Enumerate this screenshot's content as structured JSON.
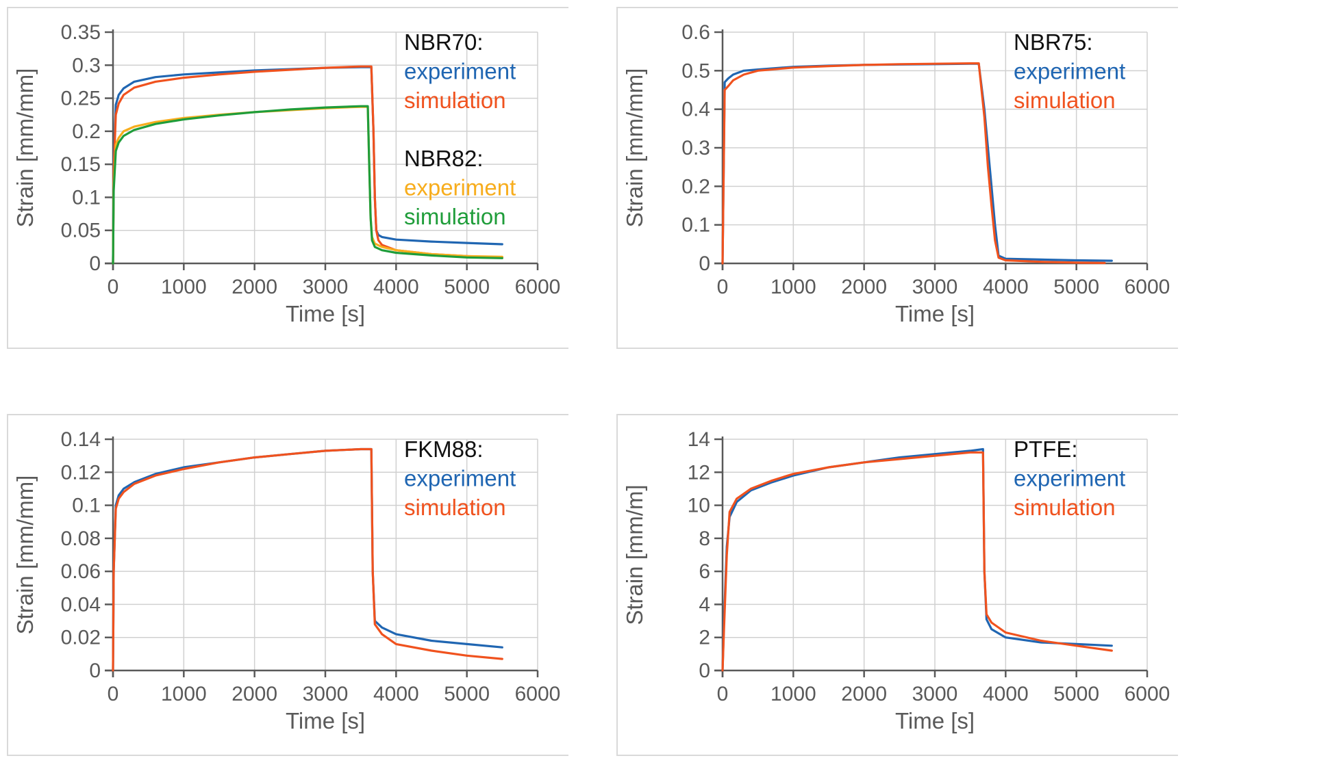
{
  "figure": {
    "colors": {
      "blue": "#2066b2",
      "orange": "#f0521e",
      "yellow": "#f7ad1d",
      "green": "#1f9d3a",
      "black": "#111111",
      "axis": "#595959",
      "frame": "#d9d9d9"
    }
  },
  "chart_data": [
    {
      "type": "line",
      "xlabel": "Time [s]",
      "ylabel": "Strain [mm/mm]",
      "xlim": [
        0,
        6000
      ],
      "ylim": [
        0,
        0.35
      ],
      "xticks": [
        0,
        1000,
        2000,
        3000,
        4000,
        5000,
        6000
      ],
      "yticks": [
        0,
        0.05,
        0.1,
        0.15,
        0.2,
        0.25,
        0.3,
        0.35
      ],
      "ytick_labels": [
        "0",
        "0.05",
        "0.1",
        "0.15",
        "0.2",
        "0.25",
        "0.3",
        "0.35"
      ],
      "legend": [
        {
          "text": "NBR70:",
          "color": "#111111"
        },
        {
          "text": "experiment",
          "color": "#2066b2"
        },
        {
          "text": "simulation",
          "color": "#f0521e"
        },
        {
          "text": "",
          "color": "#111111"
        },
        {
          "text": "NBR82:",
          "color": "#111111"
        },
        {
          "text": "experiment",
          "color": "#f7ad1d"
        },
        {
          "text": "simulation",
          "color": "#1f9d3a"
        }
      ],
      "legend_position": "top-right",
      "series": [
        {
          "name": "NBR70 experiment",
          "color": "#2066b2",
          "x": [
            0,
            10,
            40,
            80,
            150,
            300,
            600,
            1000,
            1500,
            2000,
            2500,
            3000,
            3500,
            3650,
            3680,
            3700,
            3720,
            3750,
            3800,
            4000,
            4500,
            5000,
            5500
          ],
          "y": [
            0,
            0.15,
            0.24,
            0.255,
            0.265,
            0.275,
            0.282,
            0.286,
            0.289,
            0.292,
            0.294,
            0.296,
            0.297,
            0.297,
            0.2,
            0.1,
            0.05,
            0.043,
            0.04,
            0.036,
            0.033,
            0.031,
            0.029
          ]
        },
        {
          "name": "NBR70 simulation",
          "color": "#f0521e",
          "x": [
            0,
            10,
            40,
            80,
            150,
            300,
            600,
            1000,
            1500,
            2000,
            2500,
            3000,
            3500,
            3650,
            3680,
            3700,
            3720,
            3750,
            3800,
            4000,
            4500,
            5000,
            5500
          ],
          "y": [
            0,
            0.14,
            0.225,
            0.242,
            0.255,
            0.266,
            0.275,
            0.281,
            0.286,
            0.29,
            0.293,
            0.296,
            0.298,
            0.298,
            0.2,
            0.1,
            0.05,
            0.035,
            0.028,
            0.02,
            0.014,
            0.011,
            0.009
          ]
        },
        {
          "name": "NBR82 experiment",
          "color": "#f7ad1d",
          "x": [
            0,
            10,
            40,
            80,
            150,
            300,
            600,
            1000,
            1500,
            2000,
            2500,
            3000,
            3500,
            3600,
            3620,
            3640,
            3660,
            3700,
            3800,
            4000,
            4500,
            5000,
            5500
          ],
          "y": [
            0,
            0.12,
            0.18,
            0.19,
            0.2,
            0.207,
            0.214,
            0.22,
            0.225,
            0.229,
            0.232,
            0.235,
            0.237,
            0.237,
            0.15,
            0.07,
            0.04,
            0.03,
            0.025,
            0.02,
            0.014,
            0.011,
            0.01
          ]
        },
        {
          "name": "NBR82 simulation",
          "color": "#1f9d3a",
          "x": [
            0,
            10,
            40,
            80,
            150,
            300,
            600,
            1000,
            1500,
            2000,
            2500,
            3000,
            3500,
            3600,
            3620,
            3640,
            3660,
            3700,
            3800,
            4000,
            4500,
            5000,
            5500
          ],
          "y": [
            0,
            0.11,
            0.17,
            0.183,
            0.193,
            0.202,
            0.211,
            0.218,
            0.224,
            0.229,
            0.233,
            0.236,
            0.238,
            0.238,
            0.15,
            0.07,
            0.035,
            0.025,
            0.02,
            0.016,
            0.012,
            0.009,
            0.008
          ]
        }
      ]
    },
    {
      "type": "line",
      "xlabel": "Time [s]",
      "ylabel": "Strain [mm/mm]",
      "xlim": [
        0,
        6000
      ],
      "ylim": [
        0,
        0.6
      ],
      "xticks": [
        0,
        1000,
        2000,
        3000,
        4000,
        5000,
        6000
      ],
      "yticks": [
        0,
        0.1,
        0.2,
        0.3,
        0.4,
        0.5,
        0.6
      ],
      "ytick_labels": [
        "0",
        "0.1",
        "0.2",
        "0.3",
        "0.4",
        "0.5",
        "0.6"
      ],
      "legend": [
        {
          "text": "NBR75:",
          "color": "#111111"
        },
        {
          "text": "experiment",
          "color": "#2066b2"
        },
        {
          "text": "simulation",
          "color": "#f0521e"
        }
      ],
      "legend_position": "top-right",
      "series": [
        {
          "name": "NBR75 experiment",
          "color": "#2066b2",
          "x": [
            0,
            30,
            80,
            150,
            300,
            500,
            1000,
            1500,
            2000,
            2500,
            3000,
            3500,
            3620,
            3700,
            3750,
            3800,
            3850,
            3900,
            4000,
            4500,
            5000,
            5500
          ],
          "y": [
            0,
            0.47,
            0.48,
            0.49,
            0.5,
            0.503,
            0.51,
            0.513,
            0.515,
            0.516,
            0.517,
            0.518,
            0.518,
            0.4,
            0.3,
            0.2,
            0.1,
            0.02,
            0.012,
            0.01,
            0.008,
            0.007
          ]
        },
        {
          "name": "NBR75 simulation",
          "color": "#f0521e",
          "x": [
            0,
            30,
            80,
            150,
            300,
            500,
            1000,
            1500,
            2000,
            2500,
            3000,
            3500,
            3620,
            3700,
            3750,
            3800,
            3850,
            3900,
            4000,
            4500,
            5000,
            5400
          ],
          "y": [
            0,
            0.45,
            0.46,
            0.475,
            0.49,
            0.5,
            0.508,
            0.512,
            0.515,
            0.517,
            0.518,
            0.519,
            0.519,
            0.38,
            0.25,
            0.15,
            0.06,
            0.015,
            0.008,
            0.004,
            0.002,
            0.001
          ]
        }
      ]
    },
    {
      "type": "line",
      "xlabel": "Time [s]",
      "ylabel": "Strain [mm/mm]",
      "xlim": [
        0,
        6000
      ],
      "ylim": [
        0,
        0.14
      ],
      "xticks": [
        0,
        1000,
        2000,
        3000,
        4000,
        5000,
        6000
      ],
      "yticks": [
        0,
        0.02,
        0.04,
        0.06,
        0.08,
        0.1,
        0.12,
        0.14
      ],
      "ytick_labels": [
        "0",
        "0.02",
        "0.04",
        "0.06",
        "0.08",
        "0.1",
        "0.12",
        "0.14"
      ],
      "legend": [
        {
          "text": "FKM88:",
          "color": "#111111"
        },
        {
          "text": "experiment",
          "color": "#2066b2"
        },
        {
          "text": "simulation",
          "color": "#f0521e"
        }
      ],
      "legend_position": "top-right",
      "series": [
        {
          "name": "FKM88 experiment",
          "color": "#2066b2",
          "x": [
            0,
            10,
            40,
            80,
            150,
            300,
            600,
            1000,
            1500,
            2000,
            2500,
            3000,
            3500,
            3650,
            3670,
            3700,
            3800,
            4000,
            4500,
            5000,
            5500
          ],
          "y": [
            0,
            0.06,
            0.1,
            0.106,
            0.11,
            0.114,
            0.119,
            0.123,
            0.126,
            0.129,
            0.131,
            0.133,
            0.134,
            0.134,
            0.06,
            0.03,
            0.026,
            0.022,
            0.018,
            0.016,
            0.014
          ]
        },
        {
          "name": "FKM88 simulation",
          "color": "#f0521e",
          "x": [
            0,
            10,
            40,
            80,
            150,
            300,
            600,
            1000,
            1500,
            2000,
            2500,
            3000,
            3500,
            3650,
            3670,
            3700,
            3800,
            4000,
            4500,
            5000,
            5500
          ],
          "y": [
            0,
            0.06,
            0.098,
            0.104,
            0.108,
            0.113,
            0.118,
            0.122,
            0.126,
            0.129,
            0.131,
            0.133,
            0.134,
            0.134,
            0.06,
            0.028,
            0.022,
            0.016,
            0.012,
            0.009,
            0.007
          ]
        }
      ]
    },
    {
      "type": "line",
      "xlabel": "Time [s]",
      "ylabel": "Strain [mm/m]",
      "xlim": [
        0,
        6000
      ],
      "ylim": [
        0,
        14
      ],
      "xticks": [
        0,
        1000,
        2000,
        3000,
        4000,
        5000,
        6000
      ],
      "yticks": [
        0,
        2,
        4,
        6,
        8,
        10,
        12,
        14
      ],
      "ytick_labels": [
        "0",
        "2",
        "4",
        "6",
        "8",
        "10",
        "12",
        "14"
      ],
      "legend": [
        {
          "text": "PTFE:",
          "color": "#111111"
        },
        {
          "text": "experiment",
          "color": "#2066b2"
        },
        {
          "text": "simulation",
          "color": "#f0521e"
        }
      ],
      "legend_position": "top-right",
      "series": [
        {
          "name": "PTFE experiment",
          "color": "#2066b2",
          "x": [
            0,
            20,
            60,
            100,
            200,
            400,
            700,
            1000,
            1500,
            2000,
            2500,
            3000,
            3500,
            3680,
            3700,
            3730,
            3800,
            4000,
            4500,
            5000,
            5500
          ],
          "y": [
            0,
            3,
            7.5,
            9.3,
            10.2,
            10.9,
            11.4,
            11.8,
            12.3,
            12.6,
            12.9,
            13.1,
            13.3,
            13.4,
            6,
            3.1,
            2.5,
            2.0,
            1.7,
            1.6,
            1.5
          ]
        },
        {
          "name": "PTFE simulation",
          "color": "#f0521e",
          "x": [
            0,
            20,
            60,
            100,
            200,
            400,
            700,
            1000,
            1500,
            2000,
            2500,
            3000,
            3500,
            3680,
            3700,
            3730,
            3800,
            4000,
            4500,
            5000,
            5500
          ],
          "y": [
            0,
            2.5,
            7,
            9.6,
            10.4,
            11.0,
            11.5,
            11.9,
            12.3,
            12.6,
            12.8,
            13.0,
            13.2,
            13.2,
            6,
            3.4,
            2.9,
            2.3,
            1.8,
            1.5,
            1.2
          ]
        }
      ]
    }
  ]
}
